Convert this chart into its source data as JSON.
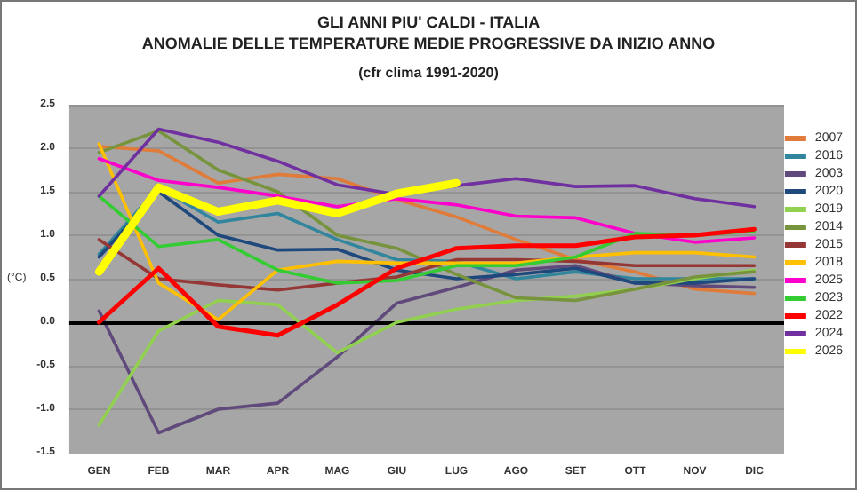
{
  "chart_data": {
    "type": "line",
    "title": "GLI ANNI PIU' CALDI - ITALIA",
    "subtitle": "ANOMALIE DELLE TEMPERATURE MEDIE PROGRESSIVE DA INIZIO ANNO",
    "annotations": [
      "(cfr clima 1991-2020)"
    ],
    "ylabel": "(°C)",
    "categories": [
      "GEN",
      "FEB",
      "MAR",
      "APR",
      "MAG",
      "GIU",
      "LUG",
      "AGO",
      "SET",
      "OTT",
      "NOV",
      "DIC"
    ],
    "ylim": [
      -1.5,
      2.5
    ],
    "yticks": [
      {
        "value": -1.5,
        "label": "-1.5"
      },
      {
        "value": -1,
        "label": "-1.0"
      },
      {
        "value": -0.5,
        "label": "-0.5"
      },
      {
        "value": 0,
        "label": "0.0"
      },
      {
        "value": 0.5,
        "label": "0.5"
      },
      {
        "value": 1,
        "label": "1.0"
      },
      {
        "value": 1.5,
        "label": "1.5"
      },
      {
        "value": 2,
        "label": "2.0"
      },
      {
        "value": 2.5,
        "label": "2.5"
      }
    ],
    "grid": "y",
    "legend": "right",
    "marker": "none",
    "line_style": "solid",
    "ref_lines": [
      {
        "axis": "y",
        "value": 0,
        "label": null,
        "color": "#000000"
      }
    ],
    "series": [
      {
        "name": "2007",
        "color": "#e07b39",
        "values": [
          2.02,
          1.97,
          1.6,
          1.7,
          1.65,
          1.41,
          1.21,
          0.95,
          0.72,
          0.58,
          0.38,
          0.33
        ]
      },
      {
        "name": "2016",
        "color": "#31859c",
        "values": [
          0.78,
          1.55,
          1.15,
          1.25,
          0.95,
          0.72,
          0.7,
          0.5,
          0.58,
          0.5,
          0.5,
          0.5
        ]
      },
      {
        "name": "2003",
        "color": "#604a7b",
        "values": [
          0.13,
          -1.27,
          -1.0,
          -0.93,
          -0.4,
          0.22,
          0.4,
          0.6,
          0.65,
          0.45,
          0.42,
          0.4
        ]
      },
      {
        "name": "2020",
        "color": "#1f497d",
        "values": [
          0.75,
          1.5,
          1.0,
          0.83,
          0.84,
          0.6,
          0.5,
          0.55,
          0.62,
          0.45,
          0.45,
          0.5
        ]
      },
      {
        "name": "2019",
        "color": "#92d050",
        "values": [
          -1.18,
          -0.1,
          0.25,
          0.2,
          -0.35,
          0.0,
          0.15,
          0.25,
          0.3,
          0.38,
          0.5,
          0.6
        ]
      },
      {
        "name": "2014",
        "color": "#77933c",
        "values": [
          1.95,
          2.2,
          1.75,
          1.5,
          1.0,
          0.85,
          0.55,
          0.28,
          0.25,
          0.38,
          0.52,
          0.58
        ]
      },
      {
        "name": "2015",
        "color": "#953735",
        "values": [
          0.95,
          0.5,
          0.43,
          0.37,
          0.45,
          0.52,
          0.72,
          0.72,
          0.7,
          0.65,
          0.65,
          0.65
        ]
      },
      {
        "name": "2018",
        "color": "#ffc000",
        "values": [
          2.05,
          0.45,
          0.03,
          0.6,
          0.7,
          0.68,
          0.68,
          0.68,
          0.75,
          0.8,
          0.8,
          0.75
        ]
      },
      {
        "name": "2025",
        "color": "#ff00cc",
        "values": [
          1.88,
          1.63,
          1.55,
          1.45,
          1.33,
          1.42,
          1.35,
          1.22,
          1.2,
          1.02,
          0.92,
          0.97
        ]
      },
      {
        "name": "2023",
        "color": "#33cc33",
        "values": [
          1.45,
          0.87,
          0.95,
          0.6,
          0.45,
          0.48,
          0.65,
          0.65,
          0.75,
          1.02,
          1.0,
          1.05
        ]
      },
      {
        "name": "2022",
        "color": "#ff0000",
        "values": [
          0.0,
          0.62,
          -0.05,
          -0.15,
          0.2,
          0.62,
          0.85,
          0.88,
          0.88,
          0.98,
          1.0,
          1.07
        ]
      },
      {
        "name": "2024",
        "color": "#7030a0",
        "values": [
          1.45,
          2.22,
          2.07,
          1.85,
          1.58,
          1.47,
          1.57,
          1.65,
          1.56,
          1.57,
          1.42,
          1.33
        ]
      },
      {
        "name": "2026",
        "color": "#ffff00",
        "values": [
          0.58,
          1.55,
          1.27,
          1.4,
          1.25,
          1.48,
          1.6,
          null,
          null,
          null,
          null,
          null
        ]
      }
    ]
  }
}
